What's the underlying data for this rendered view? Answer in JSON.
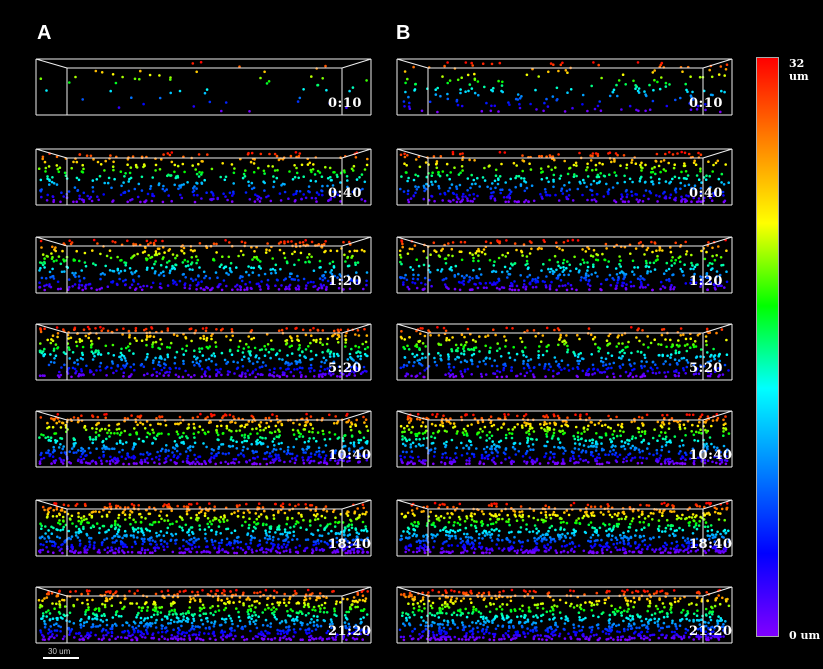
{
  "panels": [
    {
      "label": "A",
      "timepoints": [
        "0:10",
        "0:40",
        "1:20",
        "5:20",
        "10:40",
        "18:40",
        "21:20"
      ]
    },
    {
      "label": "B",
      "timepoints": [
        "0:10",
        "0:40",
        "1:20",
        "5:20",
        "10:40",
        "18:40",
        "21:20"
      ]
    }
  ],
  "colorbar": {
    "max_label": "32 um",
    "min_label": "0 um",
    "colors": [
      "#ff0000",
      "#ff8000",
      "#ffff00",
      "#00ff00",
      "#00ffff",
      "#0080ff",
      "#0000ff",
      "#8000ff"
    ]
  },
  "scalebar": {
    "label": "30 um"
  },
  "densities": {
    "A": [
      0.06,
      0.45,
      0.6,
      0.7,
      0.85,
      1.0,
      1.0
    ],
    "B": [
      0.22,
      0.55,
      0.6,
      0.6,
      0.85,
      1.0,
      1.0
    ]
  }
}
